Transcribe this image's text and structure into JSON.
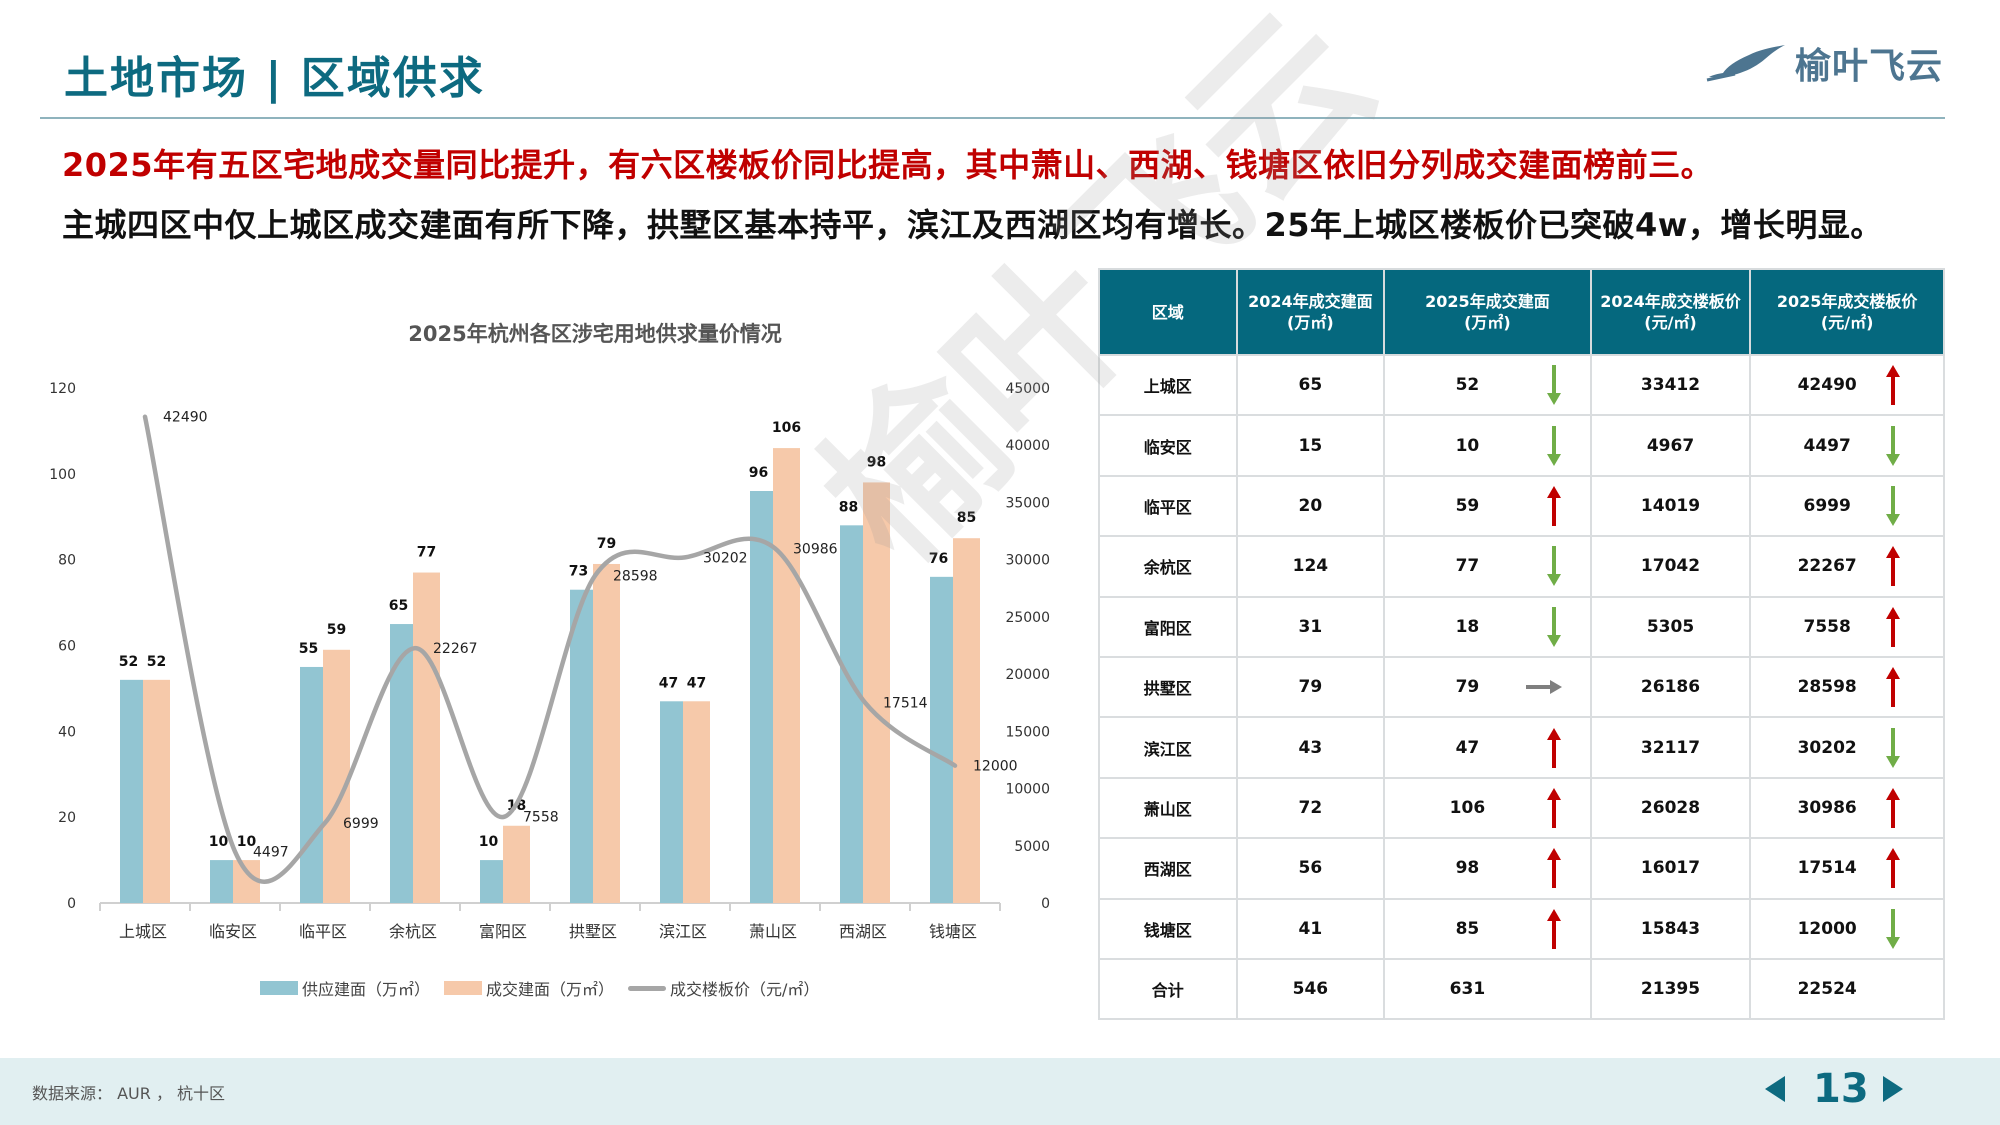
{
  "header": {
    "title": "土地市场 | 区域供求",
    "logo_text": "榆叶飞云"
  },
  "headlines": {
    "red": "2025年有五区宅地成交量同比提升，有六区楼板价同比提高，其中萧山、西湖、钱塘区依旧分列成交建面榜前三。",
    "black": "主城四区中仅上城区成交建面有所下降，拱墅区基本持平，滨江及西湖区均有增长。25年上城区楼板价已突破4w，增长明显。"
  },
  "colors": {
    "brand_teal": "#0d6a80",
    "table_header": "#05687e",
    "supply_bar": "#92c5d2",
    "deal_bar": "#f6c9aa",
    "price_line": "#a6a6a6",
    "up_arrow": "#c00000",
    "down_arrow": "#70ad47",
    "flat_arrow": "#7f7f7f",
    "headline_red": "#c00000"
  },
  "chart_data": {
    "type": "bar",
    "title": "2025年杭州各区涉宅用地供求量价情况",
    "categories": [
      "上城区",
      "临安区",
      "临平区",
      "余杭区",
      "富阳区",
      "拱墅区",
      "滨江区",
      "萧山区",
      "西湖区",
      "钱塘区"
    ],
    "series": [
      {
        "name": "供应建面（万㎡）",
        "type": "bar",
        "axis": "left",
        "values": [
          52,
          10,
          55,
          65,
          10,
          73,
          47,
          96,
          88,
          76
        ]
      },
      {
        "name": "成交建面（万㎡）",
        "type": "bar",
        "axis": "left",
        "values": [
          52,
          10,
          59,
          77,
          18,
          79,
          47,
          106,
          98,
          85
        ]
      },
      {
        "name": "成交楼板价（元/㎡）",
        "type": "line",
        "axis": "right",
        "smooth": true,
        "values": [
          42490,
          4497,
          6999,
          22267,
          7558,
          28598,
          30202,
          30986,
          17514,
          12000
        ]
      }
    ],
    "xlabel": "",
    "ylabel": "",
    "ylim": [
      0,
      120
    ],
    "y_ticks": [
      0,
      20,
      40,
      60,
      80,
      100,
      120
    ],
    "y2lim": [
      0,
      45000
    ],
    "y2_ticks": [
      0,
      5000,
      10000,
      15000,
      20000,
      25000,
      30000,
      35000,
      40000,
      45000
    ],
    "legend_position": "bottom",
    "grid": false
  },
  "table": {
    "headers": [
      "区域",
      "2024年成交建面\n(万㎡)",
      "2025年成交建面\n(万㎡)",
      "2024年成交楼板价\n(元/㎡)",
      "2025年成交楼板价\n(元/㎡)"
    ],
    "header_lines": [
      [
        "区域"
      ],
      [
        "2024年成交建面",
        "(万㎡)"
      ],
      [
        "2025年成交建面",
        "(万㎡)"
      ],
      [
        "2024年成交楼板价",
        "(元/㎡)"
      ],
      [
        "2025年成交楼板价",
        "(元/㎡)"
      ]
    ],
    "rows": [
      {
        "region": "上城区",
        "area_2024": "65",
        "area_2025": "52",
        "area_trend": "down",
        "price_2024": "33412",
        "price_2025": "42490",
        "price_trend": "up"
      },
      {
        "region": "临安区",
        "area_2024": "15",
        "area_2025": "10",
        "area_trend": "down",
        "price_2024": "4967",
        "price_2025": "4497",
        "price_trend": "down"
      },
      {
        "region": "临平区",
        "area_2024": "20",
        "area_2025": "59",
        "area_trend": "up",
        "price_2024": "14019",
        "price_2025": "6999",
        "price_trend": "down"
      },
      {
        "region": "余杭区",
        "area_2024": "124",
        "area_2025": "77",
        "area_trend": "down",
        "price_2024": "17042",
        "price_2025": "22267",
        "price_trend": "up"
      },
      {
        "region": "富阳区",
        "area_2024": "31",
        "area_2025": "18",
        "area_trend": "down",
        "price_2024": "5305",
        "price_2025": "7558",
        "price_trend": "up"
      },
      {
        "region": "拱墅区",
        "area_2024": "79",
        "area_2025": "79",
        "area_trend": "flat",
        "price_2024": "26186",
        "price_2025": "28598",
        "price_trend": "up"
      },
      {
        "region": "滨江区",
        "area_2024": "43",
        "area_2025": "47",
        "area_trend": "up",
        "price_2024": "32117",
        "price_2025": "30202",
        "price_trend": "down"
      },
      {
        "region": "萧山区",
        "area_2024": "72",
        "area_2025": "106",
        "area_trend": "up",
        "price_2024": "26028",
        "price_2025": "30986",
        "price_trend": "up"
      },
      {
        "region": "西湖区",
        "area_2024": "56",
        "area_2025": "98",
        "area_trend": "up",
        "price_2024": "16017",
        "price_2025": "17514",
        "price_trend": "up"
      },
      {
        "region": "钱塘区",
        "area_2024": "41",
        "area_2025": "85",
        "area_trend": "up",
        "price_2024": "15843",
        "price_2025": "12000",
        "price_trend": "down"
      }
    ],
    "total": {
      "region": "合计",
      "area_2024": "546",
      "area_2025": "631",
      "price_2024": "21395",
      "price_2025": "22524"
    }
  },
  "footer": {
    "source": "数据来源： AUR ， 杭十区",
    "page_number": "13"
  },
  "watermark": "榆叶飞云"
}
